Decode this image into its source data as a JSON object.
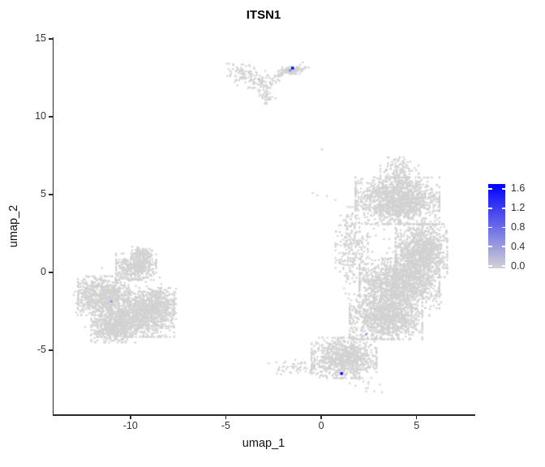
{
  "chart_data": {
    "type": "scatter",
    "title": "ITSN1",
    "xlabel": "umap_1",
    "ylabel": "umap_2",
    "xlim": [
      -14.07,
      8.03
    ],
    "ylim": [
      -9.17,
      15.1
    ],
    "x_ticks": [
      -10,
      -5,
      0,
      5
    ],
    "y_ticks": [
      15,
      10,
      5,
      0,
      -5
    ],
    "grid": false,
    "legend_position": "right",
    "base_point_color": "#d2d2d2",
    "high_color": "#0000ff",
    "colorbar": {
      "labels": [
        "1.6",
        "1.2",
        "0.8",
        "0.4",
        "0.0"
      ],
      "values": [
        1.6,
        1.2,
        0.8,
        0.4,
        0.0
      ],
      "vmin": 0,
      "vmax": 1.65
    },
    "clusters": [
      {
        "name": "top-left-wing",
        "type": "line",
        "x1": -4.55,
        "y1": 13.15,
        "x2": -2.75,
        "y2": 11.7,
        "jitter": 0.3,
        "n": 150
      },
      {
        "name": "top-wing-tail",
        "type": "line",
        "x1": -3.05,
        "y1": 11.55,
        "x2": -2.75,
        "y2": 11.05,
        "jitter": 0.18,
        "n": 25
      },
      {
        "name": "top-right-streak",
        "type": "line",
        "x1": -2.35,
        "y1": 12.7,
        "x2": -0.9,
        "y2": 13.15,
        "jitter": 0.13,
        "n": 80
      },
      {
        "name": "top-streak-core",
        "type": "gauss",
        "cx": -1.55,
        "cy": 13.02,
        "rx": 0.5,
        "ry": 0.2,
        "n": 70
      },
      {
        "name": "top-vertex",
        "type": "line",
        "x1": -2.8,
        "y1": 12.0,
        "x2": -2.3,
        "y2": 12.5,
        "jitter": 0.16,
        "n": 18
      },
      {
        "name": "left-blob-a",
        "type": "gauss",
        "cx": -11.4,
        "cy": -1.5,
        "rx": 1.35,
        "ry": 1.25,
        "n": 850
      },
      {
        "name": "left-blob-b",
        "type": "gauss",
        "cx": -9.4,
        "cy": -2.7,
        "rx": 1.7,
        "ry": 1.45,
        "n": 1000
      },
      {
        "name": "left-blob-c",
        "type": "gauss",
        "cx": -10.9,
        "cy": -3.5,
        "rx": 1.15,
        "ry": 1.0,
        "n": 550
      },
      {
        "name": "left-blob-d",
        "type": "gauss",
        "cx": -8.6,
        "cy": -2.0,
        "rx": 1.0,
        "ry": 1.0,
        "n": 280
      },
      {
        "name": "left-top-bump",
        "type": "gauss",
        "cx": -9.7,
        "cy": 0.35,
        "rx": 1.05,
        "ry": 0.85,
        "n": 420
      },
      {
        "name": "left-top-tip",
        "type": "gauss",
        "cx": -9.4,
        "cy": 1.2,
        "rx": 0.55,
        "ry": 0.45,
        "n": 110
      },
      {
        "name": "left-halo",
        "type": "uniform",
        "cx": -10.4,
        "cy": -1.9,
        "rx": 2.7,
        "ry": 2.5,
        "n": 120
      },
      {
        "name": "right-top-lobe",
        "type": "gauss",
        "cx": 4.0,
        "cy": 4.6,
        "rx": 2.2,
        "ry": 1.5,
        "n": 1500
      },
      {
        "name": "right-top-tip",
        "type": "gauss",
        "cx": 4.1,
        "cy": 6.6,
        "rx": 1.0,
        "ry": 0.8,
        "n": 130
      },
      {
        "name": "right-mid-east",
        "type": "gauss",
        "cx": 5.25,
        "cy": 1.4,
        "rx": 1.35,
        "ry": 1.7,
        "n": 1150
      },
      {
        "name": "right-mid",
        "type": "gauss",
        "cx": 4.1,
        "cy": -0.7,
        "rx": 2.1,
        "ry": 1.6,
        "n": 1500
      },
      {
        "name": "right-lower",
        "type": "gauss",
        "cx": 3.4,
        "cy": -2.9,
        "rx": 1.9,
        "ry": 1.4,
        "n": 1200
      },
      {
        "name": "right-bottom-blob",
        "type": "gauss",
        "cx": 1.2,
        "cy": -5.5,
        "rx": 1.7,
        "ry": 1.3,
        "n": 950
      },
      {
        "name": "bottom-tail",
        "type": "line",
        "x1": -2.3,
        "y1": -6.0,
        "x2": 0.0,
        "y2": -6.1,
        "jitter": 0.28,
        "n": 60
      },
      {
        "name": "right-left-arm",
        "type": "gauss",
        "cx": 1.6,
        "cy": 1.8,
        "rx": 0.85,
        "ry": 2.4,
        "n": 240
      },
      {
        "name": "right-halo",
        "type": "uniform",
        "cx": 3.8,
        "cy": 0.3,
        "rx": 2.9,
        "ry": 4.3,
        "n": 150
      },
      {
        "name": "bottom-scatter",
        "type": "line",
        "x1": 1.8,
        "y1": -7.2,
        "x2": 3.0,
        "y2": -7.55,
        "jitter": 0.3,
        "n": 12
      }
    ],
    "singles": [
      [
        0.04,
        7.9
      ],
      [
        -0.45,
        5.1
      ],
      [
        -0.2,
        4.95
      ],
      [
        0.3,
        4.9
      ],
      [
        0.75,
        4.65
      ],
      [
        -2.75,
        -5.85
      ]
    ],
    "highlights": [
      {
        "x": -1.5,
        "y": 13.12,
        "value": 1.6,
        "r": 1.7
      },
      {
        "x": -1.63,
        "y": 12.97,
        "value": 0.7,
        "r": 1.3
      },
      {
        "x": 1.07,
        "y": -6.5,
        "value": 1.6,
        "r": 1.7
      },
      {
        "x": 2.35,
        "y": -3.98,
        "value": 0.5,
        "r": 1.3
      },
      {
        "x": -11.0,
        "y": -1.87,
        "value": 0.55,
        "r": 1.3
      },
      {
        "x": -3.28,
        "y": 12.42,
        "value": 0.3,
        "r": 1.2
      }
    ]
  }
}
